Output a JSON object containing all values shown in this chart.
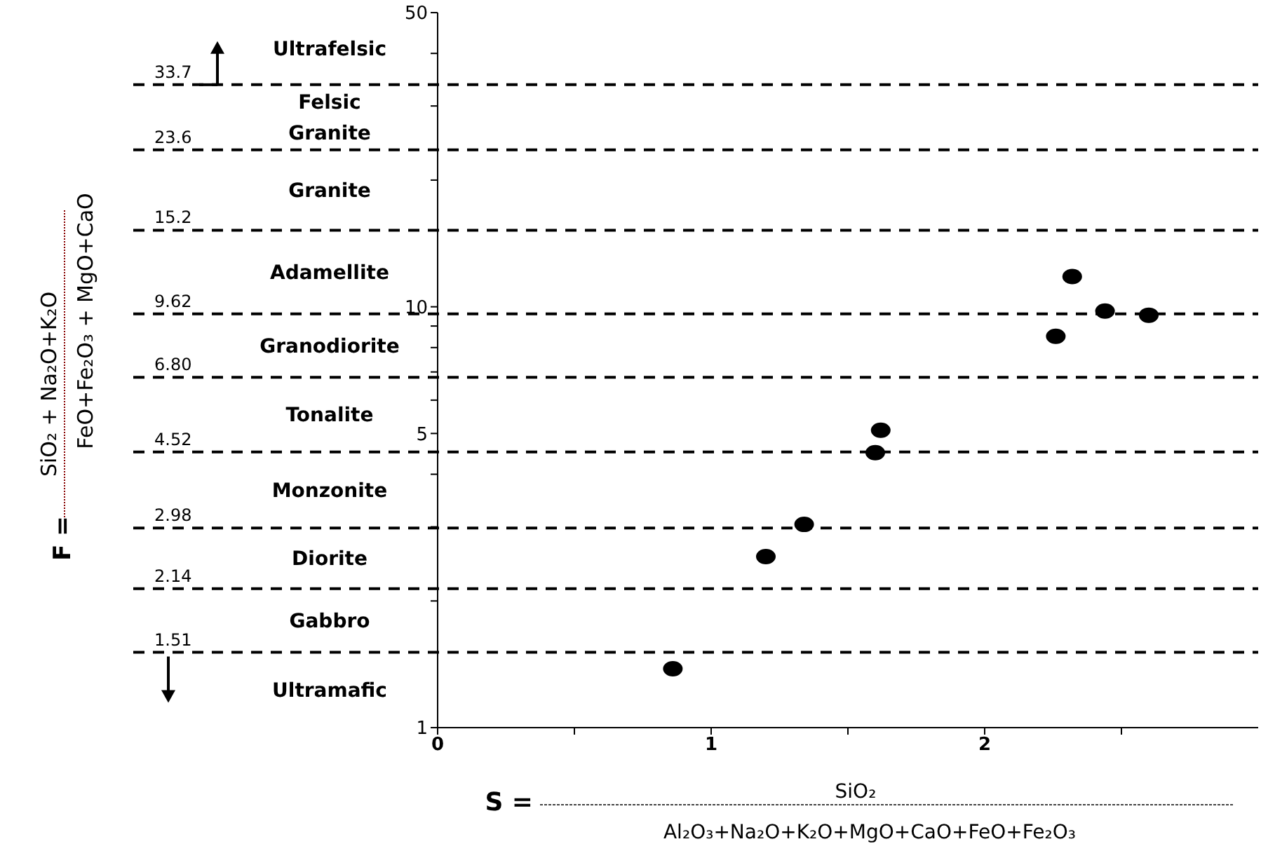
{
  "chart_data": {
    "type": "scatter",
    "xlabel": "S =\nSiO₂\nAl₂O₃+Na₂O+K₂O+MgO+CaO+FeO+Fe₂O₃",
    "ylabel": "F =\nSiO₂ + Na₂O+K₂O\nFeO+Fe₂O₃ + MgO+CaO",
    "x": [
      0.86,
      1.2,
      1.34,
      1.6,
      1.62,
      2.26,
      2.32,
      2.44,
      2.6
    ],
    "values": [
      1.38,
      2.55,
      3.04,
      4.5,
      5.09,
      8.51,
      11.8,
      9.77,
      9.55
    ],
    "color": "#000000",
    "marker": "circle",
    "log": "y",
    "xlim": [
      0,
      3
    ],
    "xticks": [
      0,
      {
        "value": 0.5,
        "label": null
      },
      1,
      {
        "value": 1.5,
        "label": null
      },
      2,
      {
        "value": 2.5,
        "label": null
      }
    ],
    "ylim": [
      1,
      50
    ],
    "yticks": [
      1,
      {
        "value": 2,
        "label": null
      },
      {
        "value": 3,
        "label": null
      },
      {
        "value": 4,
        "label": null
      },
      5,
      {
        "value": 6,
        "label": null
      },
      {
        "value": 7,
        "label": null
      },
      {
        "value": 8,
        "label": null
      },
      {
        "value": 9,
        "label": null
      },
      10,
      {
        "value": 20,
        "label": null
      },
      {
        "value": 30,
        "label": null
      },
      {
        "value": 40,
        "label": null
      },
      50
    ],
    "ref_lines": [
      {
        "axis": "y",
        "value": 33.7,
        "label": "33.7",
        "line_style": "dashed"
      },
      {
        "axis": "y",
        "value": 23.6,
        "label": "23.6",
        "line_style": "dashed"
      },
      {
        "axis": "y",
        "value": 15.2,
        "label": "15.2",
        "line_style": "dashed"
      },
      {
        "axis": "y",
        "value": 9.62,
        "label": "9.62",
        "line_style": "dashed"
      },
      {
        "axis": "y",
        "value": 6.8,
        "label": "6.80",
        "line_style": "dashed"
      },
      {
        "axis": "y",
        "value": 4.52,
        "label": "4.52",
        "line_style": "dashed"
      },
      {
        "axis": "y",
        "value": 2.98,
        "label": "2.98",
        "line_style": "dashed"
      },
      {
        "axis": "y",
        "value": 2.14,
        "label": "2.14",
        "line_style": "dashed"
      },
      {
        "axis": "y",
        "value": 1.51,
        "label": "1.51",
        "line_style": "dashed"
      }
    ],
    "annotations": [
      "Ultrafelsic",
      "Felsic\nGranite",
      "Granite",
      "Adamellite",
      "Granodiorite",
      "Tonalite",
      "Monzonite",
      "Diorite",
      "Gabbro",
      "Ultramafic"
    ]
  }
}
